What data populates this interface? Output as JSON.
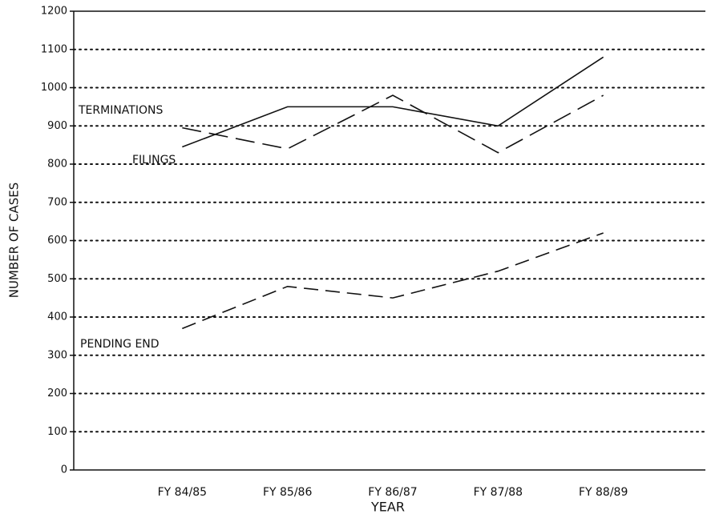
{
  "chart_data": {
    "type": "line",
    "x_label": "YEAR",
    "y_label": "NUMBER OF CASES",
    "categories": [
      "FY 84/85",
      "FY 85/86",
      "FY 86/87",
      "FY 87/88",
      "FY 88/89"
    ],
    "series": [
      {
        "name": "TERMINATIONS",
        "color": "#111111",
        "style": "dashed",
        "values": [
          895,
          840,
          980,
          830,
          980
        ]
      },
      {
        "name": "FILINGS",
        "color": "#111111",
        "style": "solid",
        "values": [
          845,
          950,
          950,
          900,
          1080
        ]
      },
      {
        "name": "PENDING END",
        "color": "#111111",
        "style": "dashed",
        "values": [
          370,
          480,
          450,
          520,
          620
        ]
      }
    ],
    "ylim": [
      0,
      1200
    ],
    "yticks": [
      0,
      100,
      200,
      300,
      400,
      500,
      600,
      700,
      800,
      900,
      1000,
      1100,
      1200
    ],
    "grid": true
  }
}
